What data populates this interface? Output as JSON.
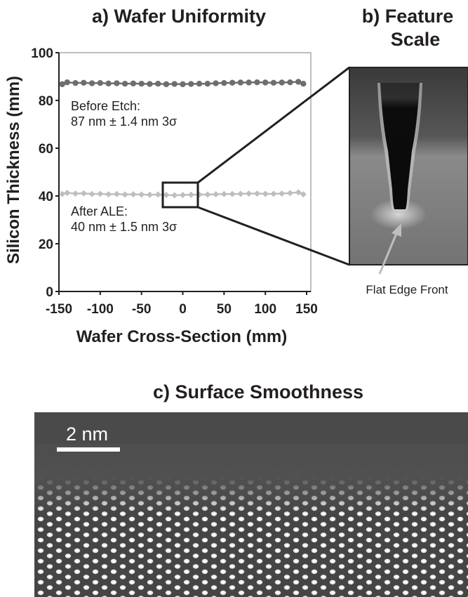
{
  "panel_a": {
    "title": "a) Wafer Uniformity",
    "annotation_before_line1": "Before Etch:",
    "annotation_before_line2": "87 nm ± 1.4 nm 3σ",
    "annotation_after_line1": "After ALE:",
    "annotation_after_line2": "40 nm ± 1.5 nm 3σ"
  },
  "panel_b": {
    "title_line1": "b) Feature",
    "title_line2": "Scale",
    "callout": "Flat Edge Front"
  },
  "panel_c": {
    "title": "c) Surface Smoothness",
    "scale_bar_label": "2 nm"
  },
  "colors": {
    "before_series": "#6d6e71",
    "after_series": "#bcbec0",
    "axis": "#231f20",
    "plot_border": "#a7a9ac"
  },
  "chart_data": {
    "type": "scatter",
    "title": "a) Wafer Uniformity",
    "xlabel": "Wafer Cross-Section (mm)",
    "ylabel": "Silicon Thickness (mm)",
    "xlim": [
      -150,
      150
    ],
    "ylim": [
      0,
      100
    ],
    "x_ticks": [
      "-150",
      "-100",
      "-50",
      "0",
      "50",
      "100",
      "150"
    ],
    "y_ticks": [
      "0",
      "20",
      "40",
      "60",
      "80",
      "100"
    ],
    "grid": false,
    "series": [
      {
        "marker": "circle",
        "color": "#6d6e71",
        "x": [
          -146,
          -140,
          -130,
          -120,
          -110,
          -100,
          -90,
          -80,
          -70,
          -60,
          -50,
          -40,
          -30,
          -20,
          -10,
          0,
          10,
          20,
          30,
          40,
          50,
          60,
          70,
          80,
          90,
          100,
          110,
          120,
          130,
          140,
          146
        ],
        "y": [
          86.8,
          87.6,
          87.3,
          87.4,
          87.2,
          87.3,
          87.1,
          87.2,
          87.0,
          87.1,
          87.0,
          86.9,
          87.0,
          86.8,
          86.9,
          86.8,
          86.9,
          87.0,
          87.0,
          87.2,
          87.3,
          87.4,
          87.5,
          87.5,
          87.6,
          87.5,
          87.4,
          87.5,
          87.6,
          87.8,
          87.0
        ]
      },
      {
        "marker": "diamond",
        "color": "#bcbec0",
        "x": [
          -146,
          -140,
          -130,
          -120,
          -110,
          -100,
          -90,
          -80,
          -70,
          -60,
          -50,
          -40,
          -30,
          -20,
          -10,
          0,
          10,
          20,
          30,
          40,
          50,
          60,
          70,
          80,
          90,
          100,
          110,
          120,
          130,
          140,
          146
        ],
        "y": [
          40.8,
          41.3,
          41.0,
          41.1,
          40.8,
          40.9,
          40.7,
          40.8,
          40.6,
          40.7,
          40.6,
          40.5,
          40.6,
          40.4,
          40.3,
          40.4,
          40.5,
          40.6,
          40.6,
          40.7,
          40.8,
          40.8,
          40.9,
          41.0,
          41.0,
          40.9,
          40.9,
          41.0,
          41.2,
          41.5,
          40.7
        ]
      }
    ]
  }
}
